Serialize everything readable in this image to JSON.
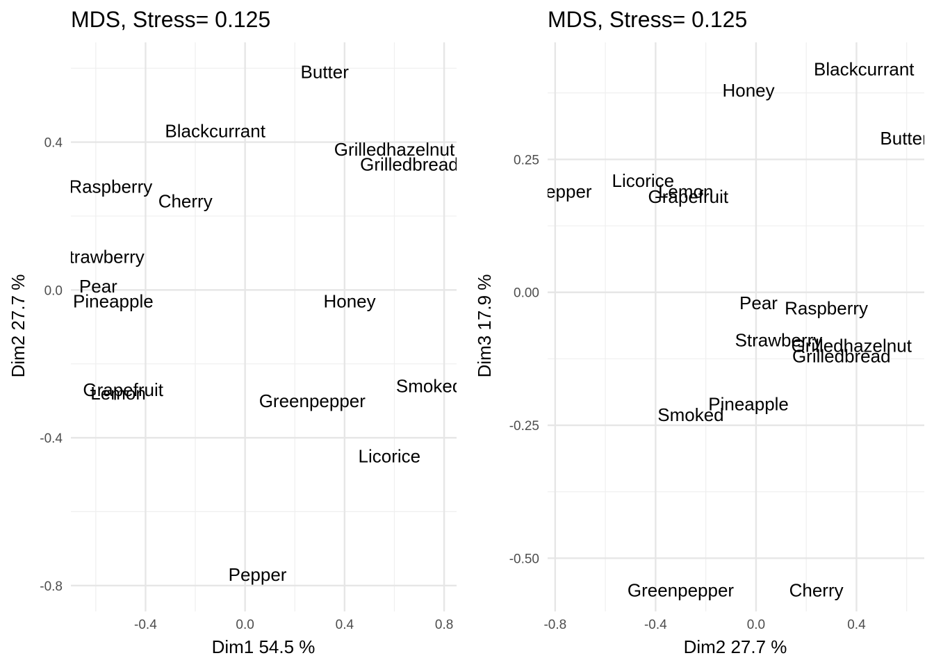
{
  "chart_data": [
    {
      "type": "scatter",
      "title": "MDS, Stress= 0.125",
      "xlabel": "Dim1 54.5 %",
      "ylabel": "Dim2 27.7 %",
      "xlim": [
        -0.7,
        0.85
      ],
      "ylim": [
        -0.87,
        0.67
      ],
      "xticks": [
        -0.4,
        0.0,
        0.4,
        0.8
      ],
      "xtick_labels": [
        "-0.4",
        "0.0",
        "0.4",
        "0.8"
      ],
      "yticks": [
        -0.8,
        -0.4,
        0.0,
        0.4
      ],
      "ytick_labels": [
        "-0.8",
        "-0.4",
        "0.0",
        "0.4"
      ],
      "grid": true,
      "points": [
        {
          "label": "Butter",
          "x": 0.32,
          "y": 0.59
        },
        {
          "label": "Blackcurrant",
          "x": -0.12,
          "y": 0.43
        },
        {
          "label": "Grilledhazelnut",
          "x": 0.6,
          "y": 0.38
        },
        {
          "label": "Grilledbread",
          "x": 0.66,
          "y": 0.34
        },
        {
          "label": "Raspberry",
          "x": -0.54,
          "y": 0.28
        },
        {
          "label": "Cherry",
          "x": -0.24,
          "y": 0.24
        },
        {
          "label": "Strawberry",
          "x": -0.58,
          "y": 0.09
        },
        {
          "label": "Pear",
          "x": -0.59,
          "y": 0.01
        },
        {
          "label": "Pineapple",
          "x": -0.53,
          "y": -0.03
        },
        {
          "label": "Honey",
          "x": 0.42,
          "y": -0.03
        },
        {
          "label": "Grapefruit",
          "x": -0.49,
          "y": -0.27
        },
        {
          "label": "Lemon",
          "x": -0.51,
          "y": -0.28
        },
        {
          "label": "Smoked",
          "x": 0.74,
          "y": -0.26
        },
        {
          "label": "Greenpepper",
          "x": 0.27,
          "y": -0.3
        },
        {
          "label": "Licorice",
          "x": 0.58,
          "y": -0.45
        },
        {
          "label": "Pepper",
          "x": 0.05,
          "y": -0.77
        }
      ]
    },
    {
      "type": "scatter",
      "title": "MDS, Stress= 0.125",
      "xlabel": "Dim2 27.7 %",
      "ylabel": "Dim3 17.9 %",
      "xlim": [
        -0.83,
        0.67
      ],
      "ylim": [
        -0.6,
        0.47
      ],
      "xticks": [
        -0.8,
        -0.4,
        0.0,
        0.4
      ],
      "xtick_labels": [
        "-0.8",
        "-0.4",
        "0.0",
        "0.4"
      ],
      "yticks": [
        -0.5,
        -0.25,
        0.0,
        0.25
      ],
      "ytick_labels": [
        "-0.50",
        "-0.25",
        "0.00",
        "0.25"
      ],
      "grid": true,
      "points": [
        {
          "label": "Blackcurrant",
          "x": 0.43,
          "y": 0.42
        },
        {
          "label": "Honey",
          "x": -0.03,
          "y": 0.38
        },
        {
          "label": "Butter",
          "x": 0.59,
          "y": 0.29
        },
        {
          "label": "Licorice",
          "x": -0.45,
          "y": 0.21
        },
        {
          "label": "Pepper",
          "x": -0.77,
          "y": 0.19
        },
        {
          "label": "Lemon",
          "x": -0.28,
          "y": 0.19
        },
        {
          "label": "Grapefruit",
          "x": -0.27,
          "y": 0.18
        },
        {
          "label": "Pear",
          "x": 0.01,
          "y": -0.02
        },
        {
          "label": "Raspberry",
          "x": 0.28,
          "y": -0.03
        },
        {
          "label": "Strawberry",
          "x": 0.09,
          "y": -0.09
        },
        {
          "label": "Grilledhazelnut",
          "x": 0.38,
          "y": -0.1
        },
        {
          "label": "Grilledbread",
          "x": 0.34,
          "y": -0.12
        },
        {
          "label": "Pineapple",
          "x": -0.03,
          "y": -0.21
        },
        {
          "label": "Smoked",
          "x": -0.26,
          "y": -0.23
        },
        {
          "label": "Greenpepper",
          "x": -0.3,
          "y": -0.56
        },
        {
          "label": "Cherry",
          "x": 0.24,
          "y": -0.56
        }
      ]
    }
  ]
}
